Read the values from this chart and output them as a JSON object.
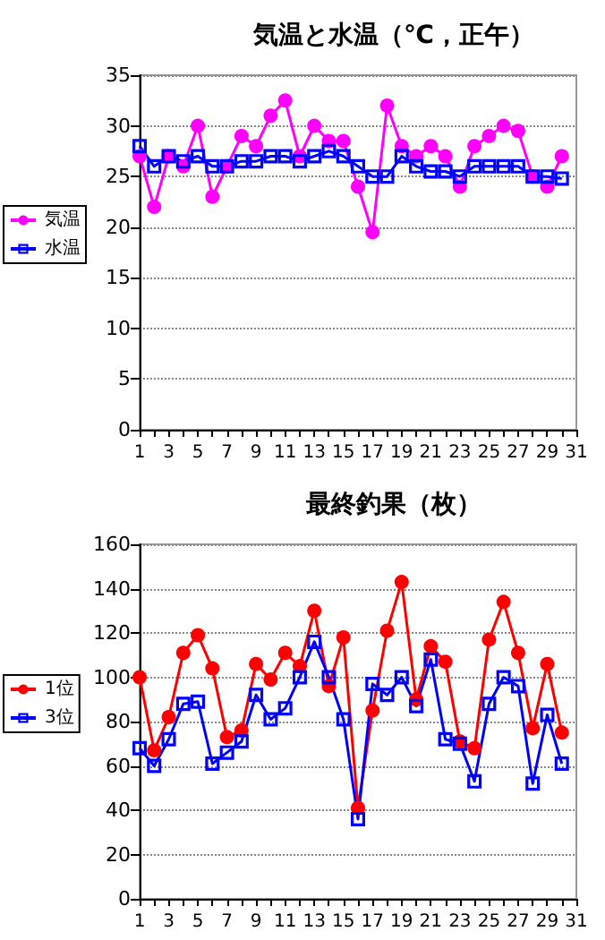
{
  "chart_data": [
    {
      "type": "line",
      "title": "気温と水温（℃，正午）",
      "x": [
        1,
        2,
        3,
        4,
        5,
        6,
        7,
        8,
        9,
        10,
        11,
        12,
        13,
        14,
        15,
        16,
        17,
        18,
        19,
        20,
        21,
        22,
        23,
        24,
        25,
        26,
        27,
        28,
        29,
        30
      ],
      "series": [
        {
          "name": "気温",
          "color": "#ff00ff",
          "marker": "circle",
          "values": [
            27,
            22,
            27,
            26,
            30,
            23,
            26,
            29,
            28,
            31,
            32.5,
            27,
            30,
            28.5,
            28.5,
            24,
            19.5,
            32,
            28,
            27,
            28,
            27,
            24,
            28,
            29,
            30,
            29.5,
            25,
            24,
            27
          ]
        },
        {
          "name": "水温",
          "color": "#0000ff",
          "marker": "square",
          "values": [
            28,
            26,
            27,
            26.5,
            27,
            26,
            26,
            26.5,
            26.5,
            27,
            27,
            26.5,
            27,
            27.5,
            27,
            26,
            25,
            25,
            27,
            26,
            25.5,
            25.5,
            25,
            26,
            26,
            26,
            26,
            25,
            25,
            24.8
          ]
        }
      ],
      "xlim": [
        1,
        31
      ],
      "xticks": [
        1,
        3,
        5,
        7,
        9,
        11,
        13,
        15,
        17,
        19,
        21,
        23,
        25,
        27,
        29,
        31
      ],
      "ylim": [
        0,
        35
      ],
      "yticks": [
        0,
        5,
        10,
        15,
        20,
        25,
        30,
        35
      ],
      "grid": "y",
      "legend": "left"
    },
    {
      "type": "line",
      "title": "最終釣果（枚）",
      "x": [
        1,
        2,
        3,
        4,
        5,
        6,
        7,
        8,
        9,
        10,
        11,
        12,
        13,
        14,
        15,
        16,
        17,
        18,
        19,
        20,
        21,
        22,
        23,
        24,
        25,
        26,
        27,
        28,
        29,
        30
      ],
      "series": [
        {
          "name": "1位",
          "color": "#ff0000",
          "marker": "circle",
          "values": [
            100,
            67,
            82,
            111,
            119,
            104,
            73,
            76,
            106,
            99,
            111,
            105,
            130,
            96,
            118,
            41,
            85,
            121,
            143,
            90,
            114,
            107,
            71,
            68,
            117,
            134,
            111,
            77,
            106,
            75
          ]
        },
        {
          "name": "3位",
          "color": "#0000ff",
          "marker": "square",
          "values": [
            68,
            60,
            72,
            88,
            89,
            61,
            66,
            71,
            92,
            81,
            86,
            100,
            116,
            100,
            81,
            36,
            97,
            92,
            100,
            87,
            108,
            72,
            70,
            53,
            88,
            100,
            96,
            52,
            83,
            61
          ]
        }
      ],
      "xlim": [
        1,
        31
      ],
      "xticks": [
        1,
        3,
        5,
        7,
        9,
        11,
        13,
        15,
        17,
        19,
        21,
        23,
        25,
        27,
        29,
        31
      ],
      "ylim": [
        0,
        160
      ],
      "yticks": [
        0,
        20,
        40,
        60,
        80,
        100,
        120,
        140,
        160
      ],
      "grid": "y",
      "legend": "left"
    }
  ]
}
